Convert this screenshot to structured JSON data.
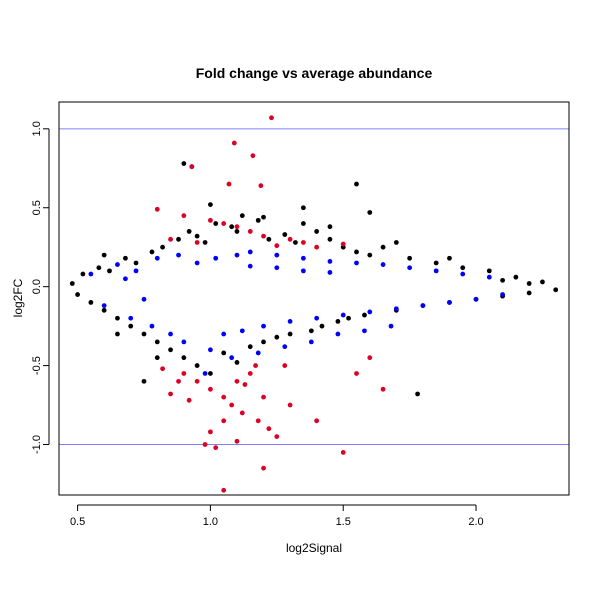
{
  "chart_data": {
    "type": "scatter",
    "title": "Fold change vs average abundance",
    "xlabel": "log2Signal",
    "ylabel": "log2FC",
    "xlim": [
      0.43,
      2.35
    ],
    "ylim": [
      -1.32,
      1.17
    ],
    "xticks": [
      0.5,
      1.0,
      1.5,
      2.0
    ],
    "xtick_labels": [
      "0.5",
      "1.0",
      "1.5",
      "2.0"
    ],
    "yticks": [
      -1.0,
      -0.5,
      0.0,
      0.5,
      1.0
    ],
    "ytick_labels": [
      "-1.0",
      "-0.5",
      "0.0",
      "0.5",
      "1.0"
    ],
    "grid": false,
    "reference_lines": [
      {
        "y": 1.0,
        "color": "#8080ff"
      },
      {
        "y": -1.0,
        "color": "#8080ff"
      }
    ],
    "series": [
      {
        "color": "#000000",
        "points": [
          [
            0.48,
            0.02
          ],
          [
            0.5,
            -0.05
          ],
          [
            0.52,
            0.08
          ],
          [
            0.55,
            -0.1
          ],
          [
            0.58,
            0.12
          ],
          [
            0.6,
            -0.15
          ],
          [
            0.62,
            0.1
          ],
          [
            0.65,
            -0.2
          ],
          [
            0.68,
            0.18
          ],
          [
            0.7,
            -0.25
          ],
          [
            0.72,
            0.15
          ],
          [
            0.75,
            -0.3
          ],
          [
            0.78,
            0.22
          ],
          [
            0.8,
            -0.35
          ],
          [
            0.82,
            0.25
          ],
          [
            0.85,
            -0.4
          ],
          [
            0.88,
            0.3
          ],
          [
            0.9,
            -0.45
          ],
          [
            0.92,
            0.35
          ],
          [
            0.95,
            -0.5
          ],
          [
            0.98,
            0.28
          ],
          [
            1.0,
            -0.55
          ],
          [
            1.02,
            0.4
          ],
          [
            1.05,
            -0.42
          ],
          [
            1.08,
            0.38
          ],
          [
            1.1,
            -0.48
          ],
          [
            1.12,
            0.45
          ],
          [
            1.15,
            -0.38
          ],
          [
            1.18,
            0.42
          ],
          [
            1.2,
            -0.35
          ],
          [
            1.22,
            0.3
          ],
          [
            1.25,
            -0.32
          ],
          [
            1.28,
            0.33
          ],
          [
            1.3,
            -0.3
          ],
          [
            1.32,
            0.28
          ],
          [
            1.35,
            0.4
          ],
          [
            1.38,
            -0.28
          ],
          [
            1.4,
            0.35
          ],
          [
            1.42,
            -0.25
          ],
          [
            1.45,
            0.3
          ],
          [
            1.48,
            -0.22
          ],
          [
            1.5,
            0.25
          ],
          [
            1.52,
            -0.2
          ],
          [
            1.55,
            0.22
          ],
          [
            1.58,
            -0.18
          ],
          [
            1.6,
            0.2
          ],
          [
            1.65,
            0.25
          ],
          [
            1.7,
            -0.15
          ],
          [
            1.75,
            0.18
          ],
          [
            1.8,
            -0.12
          ],
          [
            1.85,
            0.15
          ],
          [
            1.9,
            -0.1
          ],
          [
            1.95,
            0.12
          ],
          [
            2.0,
            -0.08
          ],
          [
            2.05,
            0.1
          ],
          [
            2.1,
            -0.06
          ],
          [
            2.15,
            0.06
          ],
          [
            2.2,
            -0.04
          ],
          [
            2.25,
            0.03
          ],
          [
            2.3,
            -0.02
          ],
          [
            0.9,
            0.78
          ],
          [
            0.93,
            0.76
          ],
          [
            1.0,
            0.52
          ],
          [
            1.55,
            0.65
          ],
          [
            1.35,
            0.5
          ],
          [
            1.6,
            0.47
          ],
          [
            1.78,
            -0.68
          ],
          [
            0.75,
            -0.6
          ],
          [
            0.8,
            -0.45
          ],
          [
            1.7,
            0.28
          ],
          [
            1.9,
            0.18
          ],
          [
            2.2,
            0.02
          ],
          [
            2.1,
            0.04
          ],
          [
            0.6,
            0.2
          ],
          [
            0.65,
            -0.3
          ],
          [
            1.45,
            0.38
          ],
          [
            1.2,
            0.44
          ],
          [
            1.1,
            0.35
          ],
          [
            0.95,
            0.32
          ]
        ]
      },
      {
        "color": "#0000ff",
        "points": [
          [
            0.55,
            0.08
          ],
          [
            0.6,
            -0.12
          ],
          [
            0.65,
            0.14
          ],
          [
            0.7,
            -0.2
          ],
          [
            0.72,
            0.1
          ],
          [
            0.78,
            -0.25
          ],
          [
            0.8,
            0.18
          ],
          [
            0.85,
            -0.3
          ],
          [
            0.88,
            0.2
          ],
          [
            0.9,
            -0.35
          ],
          [
            0.95,
            0.15
          ],
          [
            1.0,
            -0.4
          ],
          [
            1.02,
            0.18
          ],
          [
            1.05,
            -0.3
          ],
          [
            1.1,
            0.2
          ],
          [
            1.12,
            -0.28
          ],
          [
            1.15,
            0.22
          ],
          [
            1.2,
            -0.25
          ],
          [
            1.25,
            0.2
          ],
          [
            1.3,
            -0.22
          ],
          [
            1.35,
            0.18
          ],
          [
            1.4,
            -0.2
          ],
          [
            1.45,
            0.16
          ],
          [
            1.5,
            -0.18
          ],
          [
            1.55,
            0.15
          ],
          [
            1.6,
            -0.16
          ],
          [
            1.65,
            0.14
          ],
          [
            1.7,
            -0.14
          ],
          [
            1.75,
            0.12
          ],
          [
            1.8,
            -0.12
          ],
          [
            1.85,
            0.1
          ],
          [
            1.9,
            -0.1
          ],
          [
            1.95,
            0.08
          ],
          [
            2.0,
            -0.08
          ],
          [
            2.05,
            0.06
          ],
          [
            2.1,
            -0.05
          ],
          [
            0.98,
            -0.55
          ],
          [
            1.08,
            -0.45
          ],
          [
            1.18,
            -0.42
          ],
          [
            1.28,
            -0.38
          ],
          [
            1.38,
            -0.35
          ],
          [
            1.48,
            -0.3
          ],
          [
            1.58,
            -0.28
          ],
          [
            1.68,
            -0.25
          ],
          [
            1.25,
            0.12
          ],
          [
            1.35,
            0.1
          ],
          [
            1.45,
            0.09
          ],
          [
            1.15,
            0.13
          ],
          [
            0.68,
            0.05
          ],
          [
            0.75,
            -0.08
          ]
        ]
      },
      {
        "color": "#dd0022",
        "points": [
          [
            1.23,
            1.07
          ],
          [
            1.09,
            0.91
          ],
          [
            1.16,
            0.83
          ],
          [
            0.93,
            0.76
          ],
          [
            1.07,
            0.65
          ],
          [
            1.19,
            0.64
          ],
          [
            0.8,
            0.49
          ],
          [
            0.9,
            0.45
          ],
          [
            1.0,
            0.42
          ],
          [
            1.05,
            0.4
          ],
          [
            1.1,
            0.38
          ],
          [
            1.15,
            0.35
          ],
          [
            1.2,
            0.32
          ],
          [
            1.3,
            0.3
          ],
          [
            0.85,
            0.3
          ],
          [
            0.95,
            0.28
          ],
          [
            1.25,
            0.26
          ],
          [
            1.35,
            0.28
          ],
          [
            1.4,
            0.25
          ],
          [
            1.5,
            0.27
          ],
          [
            0.82,
            -0.52
          ],
          [
            0.9,
            -0.55
          ],
          [
            0.95,
            -0.6
          ],
          [
            1.0,
            -0.65
          ],
          [
            1.05,
            -0.7
          ],
          [
            1.08,
            -0.75
          ],
          [
            1.1,
            -0.6
          ],
          [
            1.12,
            -0.8
          ],
          [
            1.15,
            -0.55
          ],
          [
            1.18,
            -0.85
          ],
          [
            1.2,
            -0.7
          ],
          [
            1.22,
            -0.9
          ],
          [
            1.05,
            -0.85
          ],
          [
            1.0,
            -0.92
          ],
          [
            0.98,
            -1.0
          ],
          [
            1.02,
            -1.02
          ],
          [
            1.1,
            -0.98
          ],
          [
            1.25,
            -0.95
          ],
          [
            1.2,
            -1.15
          ],
          [
            1.05,
            -1.29
          ],
          [
            1.5,
            -1.05
          ],
          [
            1.4,
            -0.85
          ],
          [
            1.3,
            -0.75
          ],
          [
            0.88,
            -0.6
          ],
          [
            0.92,
            -0.72
          ],
          [
            1.13,
            -0.62
          ],
          [
            1.17,
            -0.5
          ],
          [
            1.6,
            -0.45
          ],
          [
            1.65,
            -0.65
          ],
          [
            1.55,
            -0.55
          ],
          [
            0.85,
            -0.68
          ],
          [
            1.28,
            -0.5
          ]
        ]
      }
    ]
  }
}
